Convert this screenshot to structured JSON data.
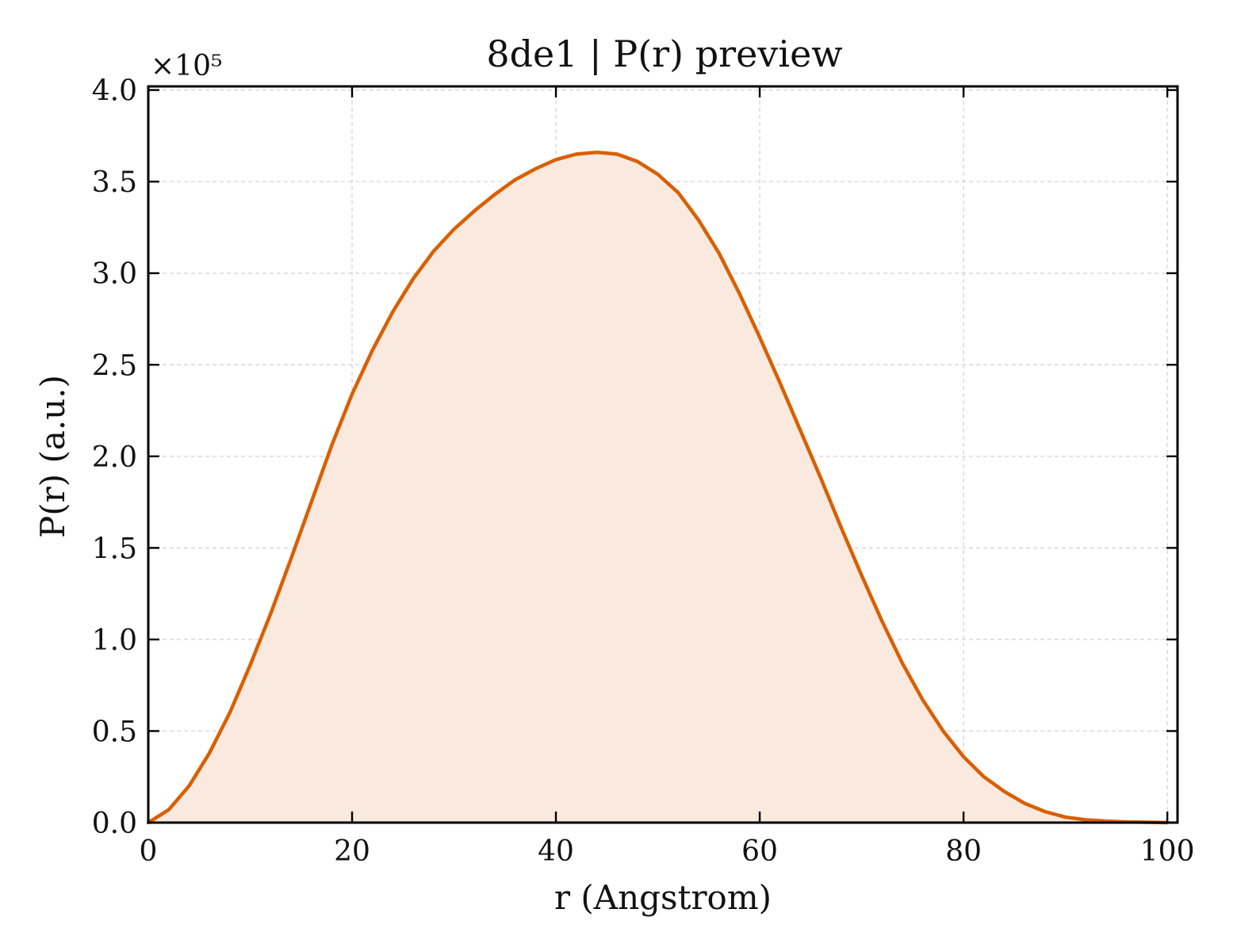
{
  "chart_data": {
    "type": "area",
    "title": "8de1 | P(r) preview",
    "xlabel": "r (Angstrom)",
    "ylabel": "P(r) (a.u.)",
    "y_offset_text": "×10⁵",
    "y_scale": 100000,
    "xlim": [
      0,
      101
    ],
    "ylim": [
      0,
      4.02
    ],
    "x_ticks": [
      0,
      20,
      40,
      60,
      80,
      100
    ],
    "x_tick_labels": [
      "0",
      "20",
      "40",
      "60",
      "80",
      "100"
    ],
    "y_ticks": [
      0,
      0.5,
      1.0,
      1.5,
      2.0,
      2.5,
      3.0,
      3.5,
      4.0
    ],
    "y_tick_labels": [
      "0.0",
      "0.5",
      "1.0",
      "1.5",
      "2.0",
      "2.5",
      "3.0",
      "3.5",
      "4.0"
    ],
    "grid": true,
    "series": [
      {
        "color": "#d95f02",
        "fill_color": "#f9e9df",
        "x": [
          0,
          2,
          4,
          6,
          8,
          10,
          12,
          14,
          16,
          18,
          20,
          22,
          24,
          26,
          28,
          30,
          32,
          34,
          36,
          38,
          40,
          42,
          44,
          46,
          48,
          50,
          52,
          54,
          56,
          58,
          60,
          62,
          64,
          66,
          68,
          70,
          72,
          74,
          76,
          78,
          80,
          82,
          84,
          86,
          88,
          90,
          92,
          94,
          96,
          98,
          100
        ],
        "y": [
          0.0,
          0.07,
          0.2,
          0.38,
          0.6,
          0.86,
          1.14,
          1.44,
          1.75,
          2.06,
          2.34,
          2.58,
          2.79,
          2.97,
          3.12,
          3.24,
          3.34,
          3.43,
          3.51,
          3.57,
          3.62,
          3.65,
          3.66,
          3.65,
          3.61,
          3.54,
          3.44,
          3.29,
          3.11,
          2.89,
          2.65,
          2.4,
          2.14,
          1.88,
          1.61,
          1.35,
          1.1,
          0.87,
          0.67,
          0.5,
          0.36,
          0.25,
          0.17,
          0.105,
          0.06,
          0.03,
          0.015,
          0.008,
          0.004,
          0.002,
          0.0
        ]
      }
    ]
  }
}
